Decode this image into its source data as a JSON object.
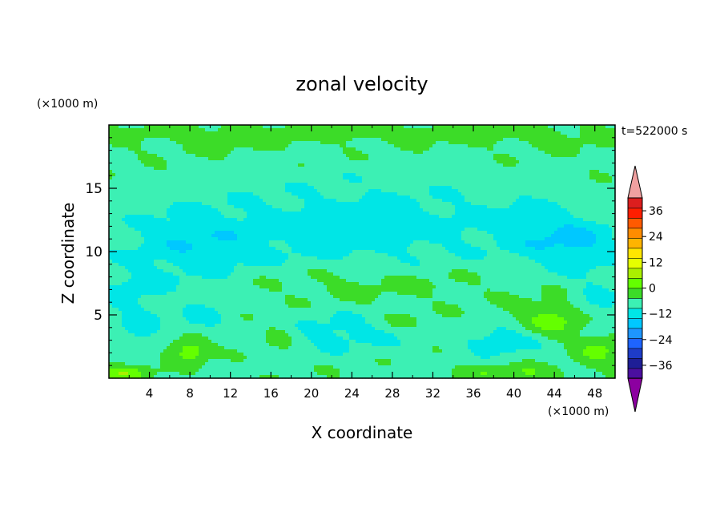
{
  "chart_data": {
    "type": "heatmap",
    "title": "zonal velocity",
    "xlabel": "X coordinate",
    "ylabel": "Z coordinate",
    "x_unit_label": "(×1000 m)",
    "y_unit_label": "(×1000 m)",
    "time_label": "t=522000 s",
    "xlim": [
      0,
      50
    ],
    "ylim": [
      0,
      20
    ],
    "x_ticks": [
      4,
      8,
      12,
      16,
      20,
      24,
      28,
      32,
      36,
      40,
      44,
      48
    ],
    "y_ticks": [
      5,
      10,
      15
    ],
    "colorbar": {
      "levels_min": -42,
      "levels_max": 42,
      "step": 6,
      "tick_values": [
        36,
        24,
        12,
        0,
        -12,
        -24,
        -36
      ],
      "tick_labels": [
        "36",
        "24",
        "12",
        "0",
        "−12",
        "−24",
        "−36"
      ],
      "colors": [
        "#4b0fa0",
        "#1e1e96",
        "#1e3cc8",
        "#1e64ff",
        "#1e96ff",
        "#00c8ff",
        "#00e6e6",
        "#3cf0b4",
        "#3cdc28",
        "#64ff00",
        "#aaf000",
        "#e6ff00",
        "#ffe600",
        "#ffb400",
        "#ff8c00",
        "#ff5a00",
        "#ff1e00",
        "#dc1e1e"
      ],
      "under_color": "#8c00a0",
      "over_color": "#f0a0a0"
    },
    "field_description": "Mostly weak positive zonal velocity (0 to 12) throughout the domain with patches of weak negative flow (-6 to -12) in the lower and middle levels; strongest positive values near the top boundary and near the surface.",
    "features": [
      {
        "x": 25,
        "y": 19.4,
        "sx": 30,
        "sz": 0.7,
        "amp": 5
      },
      {
        "x": 10,
        "y": 18.3,
        "sx": 12,
        "sz": 0.8,
        "amp": 2
      },
      {
        "x": 43,
        "y": 18.5,
        "sx": 10,
        "sz": 0.7,
        "amp": 2
      },
      {
        "x": 25,
        "y": 12,
        "sx": 14,
        "sz": 3.5,
        "amp": -8
      },
      {
        "x": 8,
        "y": 10.5,
        "sx": 7,
        "sz": 3,
        "amp": -8
      },
      {
        "x": 46,
        "y": 10.5,
        "sx": 5,
        "sz": 2,
        "amp": -10
      },
      {
        "x": 42,
        "y": 12.5,
        "sx": 6,
        "sz": 2.5,
        "amp": -4
      },
      {
        "x": 2,
        "y": 6.5,
        "sx": 4,
        "sz": 2,
        "amp": -6
      },
      {
        "x": 9,
        "y": 4.6,
        "sx": 2.5,
        "sz": 1,
        "amp": -7
      },
      {
        "x": 3,
        "y": 3.8,
        "sx": 1.8,
        "sz": 1,
        "amp": -8
      },
      {
        "x": 23,
        "y": 3.6,
        "sx": 7,
        "sz": 1.6,
        "amp": -7
      },
      {
        "x": 39,
        "y": 3.0,
        "sx": 4,
        "sz": 1.2,
        "amp": -9
      },
      {
        "x": 48,
        "y": 6,
        "sx": 2.5,
        "sz": 2,
        "amp": -6
      },
      {
        "x": 25,
        "y": 7.5,
        "sx": 12,
        "sz": 1.5,
        "amp": 4
      },
      {
        "x": 8,
        "y": 2.2,
        "sx": 1.8,
        "sz": 1.0,
        "amp": 12
      },
      {
        "x": 44,
        "y": 4.6,
        "sx": 3.5,
        "sz": 1.5,
        "amp": 10
      },
      {
        "x": 48.5,
        "y": 2.2,
        "sx": 2,
        "sz": 1.2,
        "amp": 9
      },
      {
        "x": 1.5,
        "y": 0.4,
        "sx": 2.5,
        "sz": 0.6,
        "amp": 12
      },
      {
        "x": 40,
        "y": 0.4,
        "sx": 5,
        "sz": 0.6,
        "amp": 8
      },
      {
        "x": 17,
        "y": 3.5,
        "sx": 2,
        "sz": 1,
        "amp": 6
      },
      {
        "x": 29,
        "y": 4.5,
        "sx": 3,
        "sz": 0.9,
        "amp": 4
      }
    ]
  }
}
